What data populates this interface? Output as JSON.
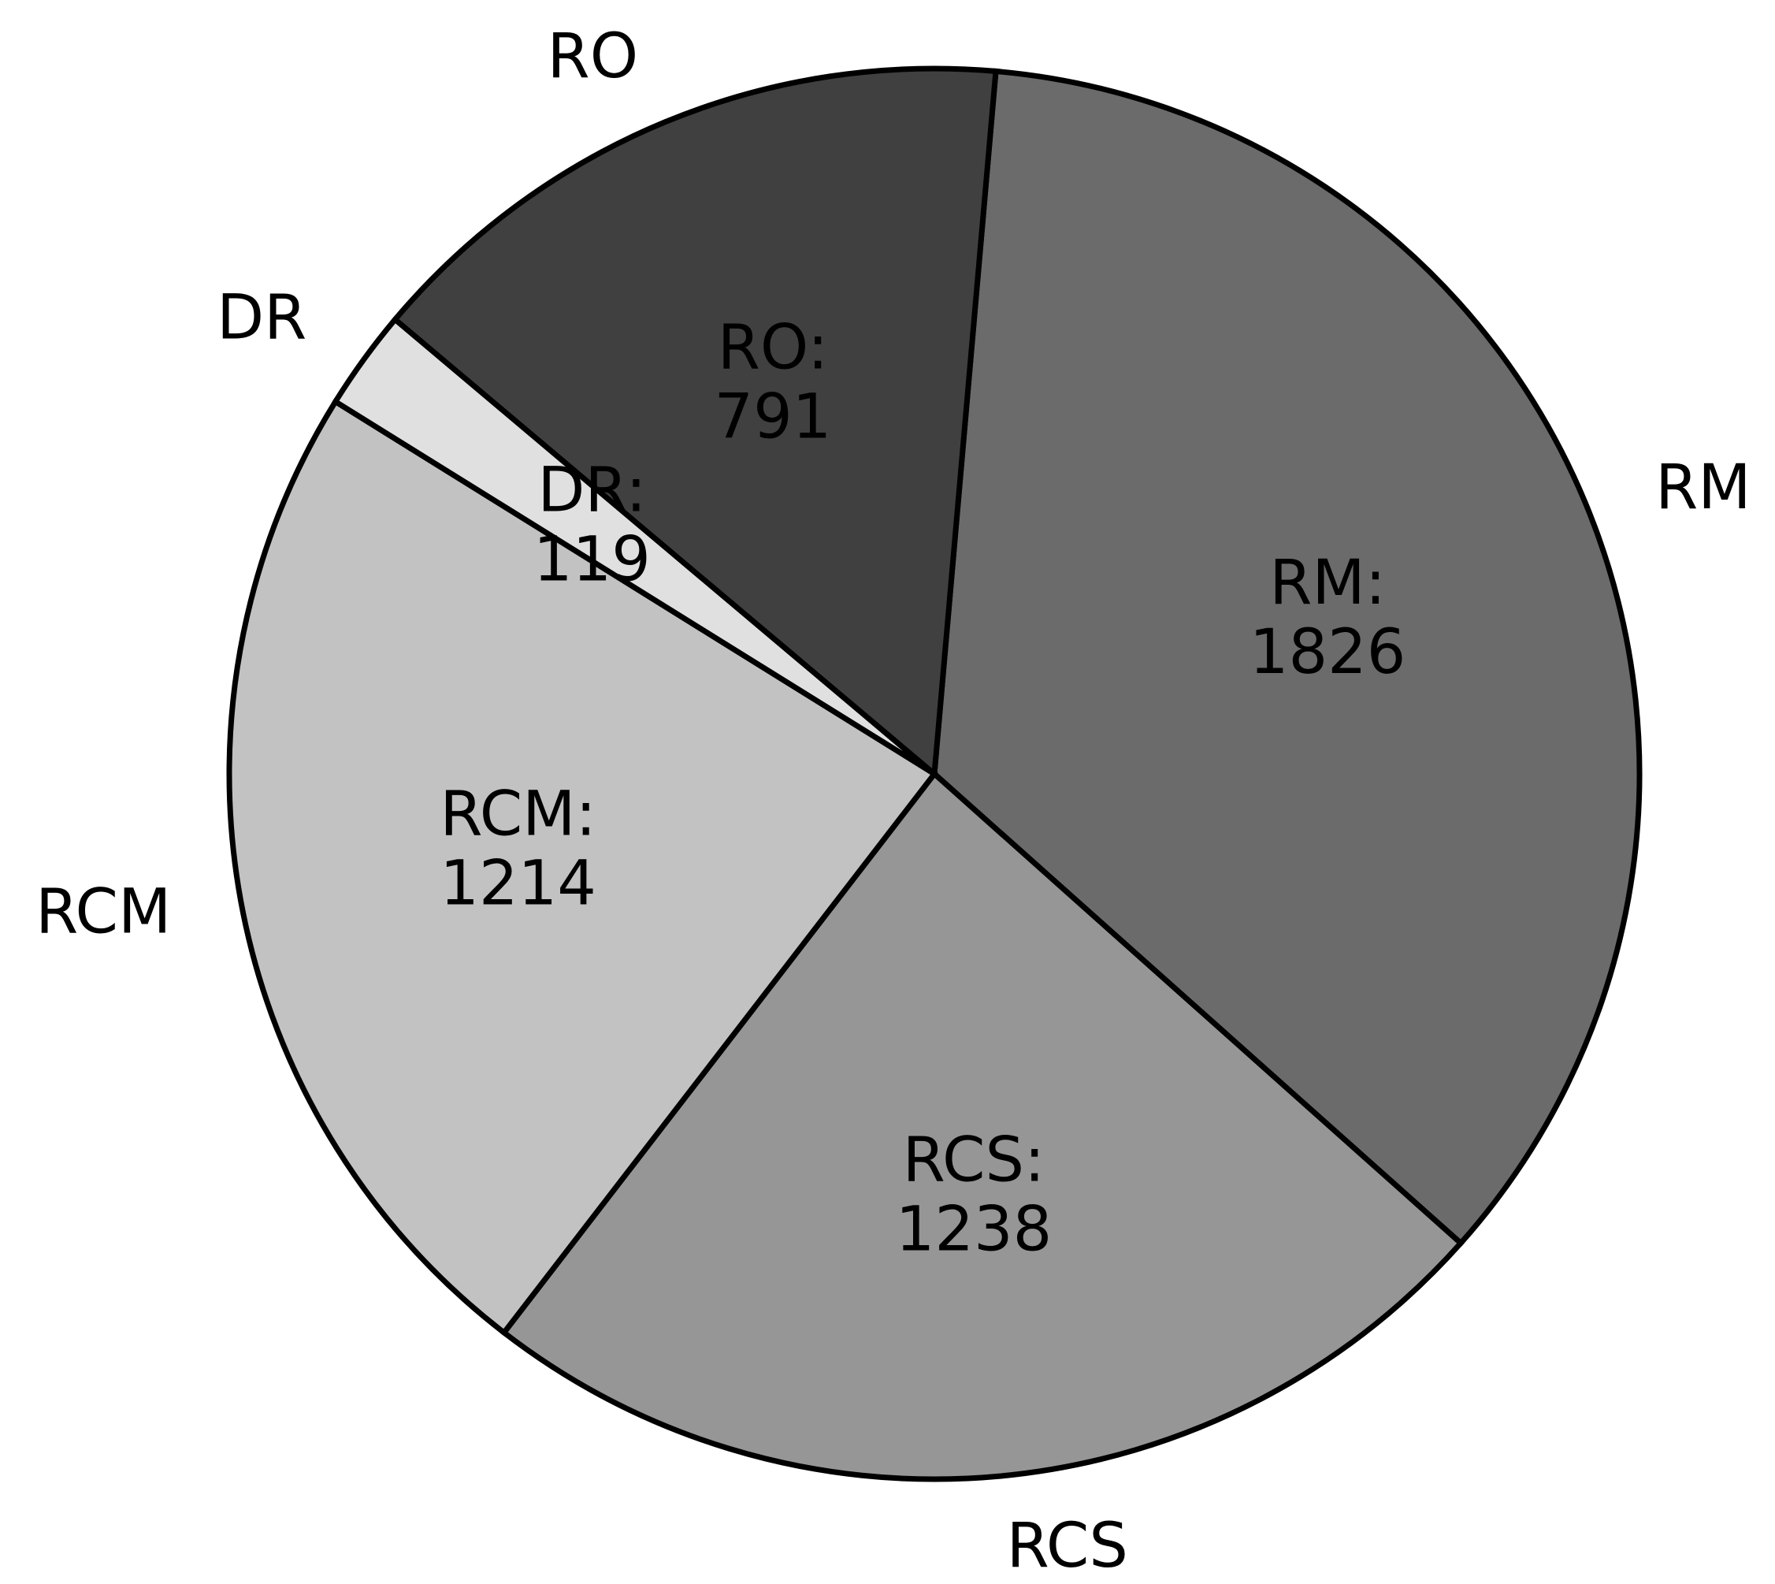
{
  "chart_data": {
    "type": "pie",
    "title": "",
    "slices": [
      {
        "label": "RM",
        "value": 1826,
        "inner_label": "RM:",
        "inner_value": "1826",
        "color": "#6b6b6b"
      },
      {
        "label": "RCS",
        "value": 1238,
        "inner_label": "RCS:",
        "inner_value": "1238",
        "color": "#969696"
      },
      {
        "label": "RCM",
        "value": 1214,
        "inner_label": "RCM:",
        "inner_value": "1214",
        "color": "#c2c2c2"
      },
      {
        "label": "DR",
        "value": 119,
        "inner_label": "DR:",
        "inner_value": "119",
        "color": "#e0e0e0"
      },
      {
        "label": "RO",
        "value": 791,
        "inner_label": "RO:",
        "inner_value": "791",
        "color": "#404040"
      }
    ],
    "start_angle_deg": 85,
    "direction": "clockwise",
    "legend": "none"
  }
}
